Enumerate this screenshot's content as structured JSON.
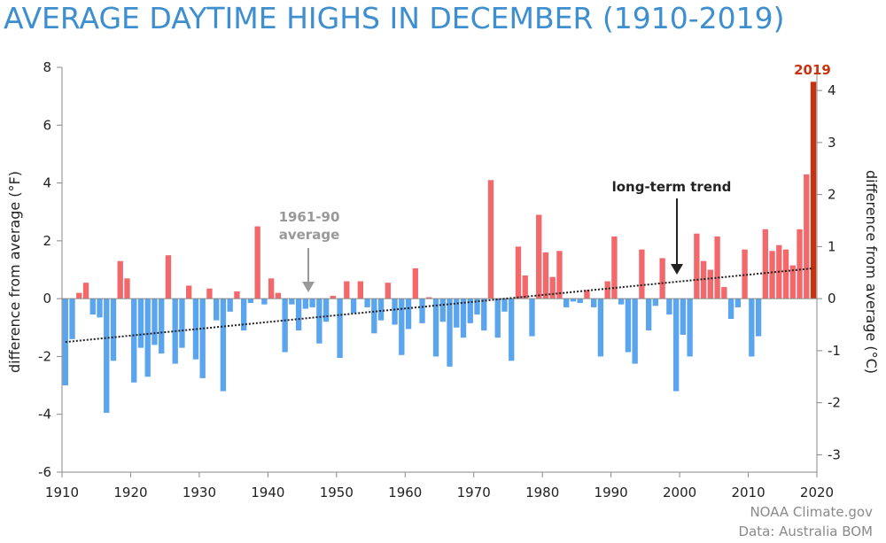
{
  "chart_data": {
    "type": "bar",
    "title": "AVERAGE DAYTIME HIGHS IN DECEMBER (1910-2019)",
    "xlabel": "",
    "ylabel_left": "difference from average (°F)",
    "ylabel_right": "difference from average (°C)",
    "ylim_f": [
      -6,
      8
    ],
    "ylim_c": [
      -3.33,
      4.44
    ],
    "left_ticks": [
      "-6",
      "-4",
      "-2",
      "0",
      "2",
      "4",
      "6",
      "8"
    ],
    "right_ticks": [
      "-3",
      "-2",
      "-1",
      "0",
      "1",
      "2",
      "3",
      "4"
    ],
    "x_ticks": [
      "1910",
      "1920",
      "1930",
      "1940",
      "1950",
      "1960",
      "1970",
      "1980",
      "1990",
      "2000",
      "2010",
      "2020"
    ],
    "x": [
      1910,
      1911,
      1912,
      1913,
      1914,
      1915,
      1916,
      1917,
      1918,
      1919,
      1920,
      1921,
      1922,
      1923,
      1924,
      1925,
      1926,
      1927,
      1928,
      1929,
      1930,
      1931,
      1932,
      1933,
      1934,
      1935,
      1936,
      1937,
      1938,
      1939,
      1940,
      1941,
      1942,
      1943,
      1944,
      1945,
      1946,
      1947,
      1948,
      1949,
      1950,
      1951,
      1952,
      1953,
      1954,
      1955,
      1956,
      1957,
      1958,
      1959,
      1960,
      1961,
      1962,
      1963,
      1964,
      1965,
      1966,
      1967,
      1968,
      1969,
      1970,
      1971,
      1972,
      1973,
      1974,
      1975,
      1976,
      1977,
      1978,
      1979,
      1980,
      1981,
      1982,
      1983,
      1984,
      1985,
      1986,
      1987,
      1988,
      1989,
      1990,
      1991,
      1992,
      1993,
      1994,
      1995,
      1996,
      1997,
      1998,
      1999,
      2000,
      2001,
      2002,
      2003,
      2004,
      2005,
      2006,
      2007,
      2008,
      2009,
      2010,
      2011,
      2012,
      2013,
      2014,
      2015,
      2016,
      2017,
      2018,
      2019
    ],
    "values_f": [
      -3.0,
      -1.4,
      0.2,
      0.55,
      -0.55,
      -0.65,
      -3.95,
      -2.15,
      1.3,
      0.7,
      -2.9,
      -1.7,
      -2.7,
      -1.6,
      -1.9,
      1.5,
      -2.25,
      -1.7,
      0.45,
      -2.1,
      -2.75,
      0.35,
      -0.75,
      -3.2,
      -0.45,
      0.25,
      -1.1,
      -0.15,
      2.5,
      -0.2,
      0.7,
      0.2,
      -1.85,
      -0.2,
      -1.1,
      -0.35,
      -0.3,
      -1.55,
      -0.8,
      0.1,
      -2.05,
      0.6,
      -0.5,
      0.6,
      -0.3,
      -1.2,
      -0.75,
      0.55,
      -0.9,
      -1.95,
      -1.05,
      1.05,
      -0.85,
      0.05,
      -2.0,
      -0.8,
      -2.35,
      -1.0,
      -1.35,
      -0.85,
      -0.55,
      -1.1,
      4.1,
      -1.35,
      -0.45,
      -2.15,
      1.8,
      0.8,
      -1.3,
      2.9,
      1.6,
      0.75,
      1.65,
      -0.3,
      -0.1,
      -0.15,
      0.3,
      -0.3,
      -2.0,
      0.6,
      2.15,
      -0.2,
      -1.85,
      -2.25,
      1.7,
      -1.1,
      -0.25,
      1.4,
      -0.55,
      -3.2,
      -1.25,
      -2.0,
      2.25,
      1.3,
      1.0,
      2.15,
      0.4,
      -0.7,
      -0.3,
      1.7,
      -2.0,
      -1.3,
      2.4,
      1.65,
      1.85,
      1.7,
      1.15,
      2.4,
      4.3,
      7.5
    ],
    "trend": {
      "label": "long-term trend",
      "start": [
        1910,
        -1.5
      ],
      "end": [
        2019,
        1.05
      ]
    },
    "annotations": {
      "average_label": [
        "1961-90",
        "average"
      ],
      "highlight_year": "2019"
    },
    "colors": {
      "positive": "#f2686b",
      "negative": "#5ba5ef",
      "highlight": "#c83210",
      "title": "#3d8fcf",
      "average_text": "#999999",
      "trend": "#222222"
    }
  },
  "credits": {
    "line1": "NOAA Climate.gov",
    "line2": "Data: Australia BOM"
  }
}
